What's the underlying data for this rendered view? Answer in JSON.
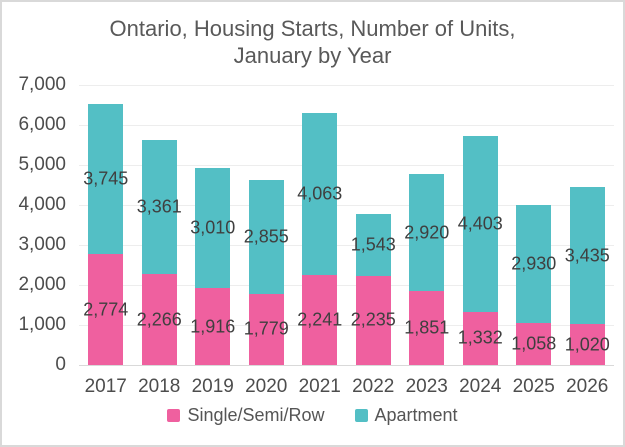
{
  "chart_data": {
    "type": "bar",
    "stacked": true,
    "title": "Ontario, Housing Starts, Number of Units, January by Year",
    "title_lines": [
      "Ontario, Housing Starts, Number of Units,",
      "January by Year"
    ],
    "categories": [
      "2017",
      "2018",
      "2019",
      "2020",
      "2021",
      "2022",
      "2023",
      "2024",
      "2025",
      "2026"
    ],
    "series": [
      {
        "name": "Single/Semi/Row",
        "color": "#ef609f",
        "values": [
          2774,
          2266,
          1916,
          1779,
          2241,
          2235,
          1851,
          1332,
          1058,
          1020
        ]
      },
      {
        "name": "Apartment",
        "color": "#53bfc5",
        "values": [
          3745,
          3361,
          3010,
          2855,
          4063,
          1543,
          2920,
          4403,
          2930,
          3435
        ]
      }
    ],
    "data_labels": [
      "2,774",
      "2,266",
      "1,916",
      "1,779",
      "2,241",
      "2,235",
      "1,851",
      "1,332",
      "1,058",
      "1,020",
      "3,745",
      "3,361",
      "3,010",
      "2,855",
      "4,063",
      "1,543",
      "2,920",
      "4,403",
      "2,930",
      "3,435"
    ],
    "ylim": [
      0,
      7000
    ],
    "ytick_step": 1000,
    "ytick_labels": [
      "0",
      "1,000",
      "2,000",
      "3,000",
      "4,000",
      "5,000",
      "6,000",
      "7,000"
    ],
    "grid": true,
    "legend_position": "bottom"
  },
  "colors": {
    "single_semi_row": "#ef609f",
    "apartment": "#53bfc5",
    "grid_line": "#ededed",
    "axis_baseline": "#d9d9d9",
    "axis_text": "#4d4d4d",
    "title_text": "#595959",
    "data_label_text": "#3f3f3f",
    "frame_border": "#d9d9d9",
    "background": "#ffffff"
  }
}
